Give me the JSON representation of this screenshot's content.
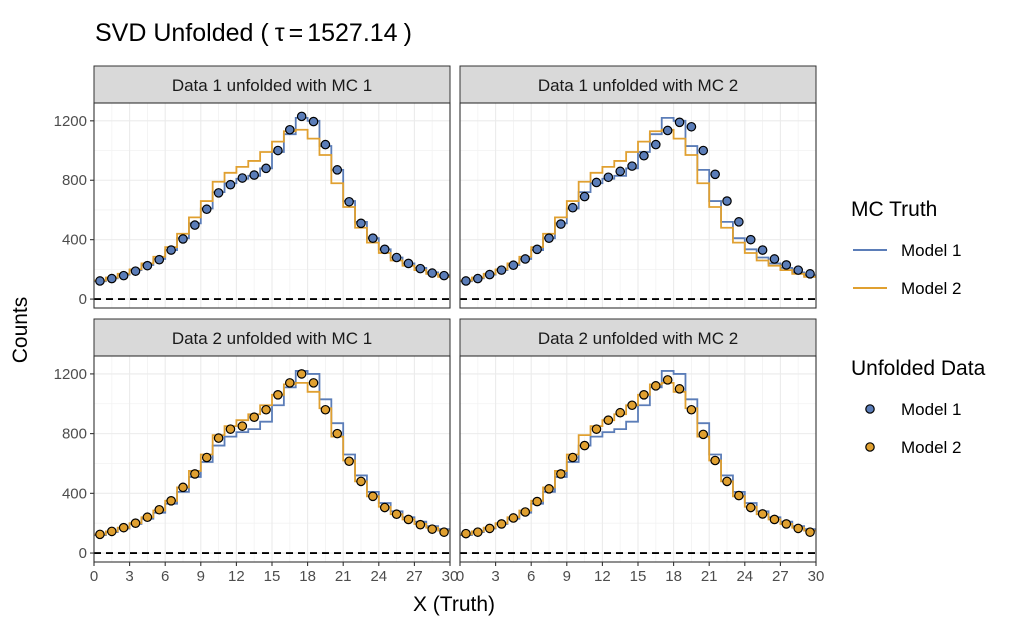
{
  "chart_data": {
    "type": "line",
    "title_prefix": "SVD Unfolded (",
    "title_symbol": "τ",
    "title_equals": "=",
    "title_value": "1527.14",
    "title_suffix": ")",
    "xlabel": "X (Truth)",
    "ylabel": "Counts",
    "xlim": [
      0,
      30
    ],
    "ylim": [
      -60,
      1320
    ],
    "xticks": [
      0,
      3,
      6,
      9,
      12,
      15,
      18,
      21,
      24,
      27,
      30
    ],
    "xtick_labels": [
      "0",
      "3",
      "6",
      "9",
      "12",
      "15",
      "18",
      "21",
      "24",
      "27",
      "30"
    ],
    "yticks": [
      0,
      400,
      800,
      1200
    ],
    "ytick_labels": [
      "0",
      "400",
      "800",
      "1200"
    ],
    "reference_line": 0,
    "grid": true,
    "colors": {
      "model1": "#5b7db8",
      "model2": "#e0a030"
    },
    "legend": {
      "placement": "right",
      "truth_title": "MC Truth",
      "truth_items": [
        "Model 1",
        "Model 2"
      ],
      "data_title": "Unfolded Data",
      "data_items": [
        "Model 1",
        "Model 2"
      ]
    },
    "bin_edges": [
      0,
      1,
      2,
      3,
      4,
      5,
      6,
      7,
      8,
      9,
      10,
      11,
      12,
      13,
      14,
      15,
      16,
      17,
      18,
      19,
      20,
      21,
      22,
      23,
      24,
      25,
      26,
      27,
      28,
      29,
      30
    ],
    "truth_model1": [
      120,
      140,
      165,
      195,
      230,
      270,
      330,
      410,
      510,
      610,
      720,
      780,
      810,
      830,
      880,
      990,
      1110,
      1220,
      1200,
      1030,
      870,
      660,
      520,
      410,
      335,
      280,
      240,
      210,
      180,
      160
    ],
    "truth_model2": [
      125,
      145,
      170,
      200,
      240,
      285,
      350,
      440,
      550,
      660,
      790,
      850,
      890,
      930,
      990,
      1060,
      1130,
      1140,
      1080,
      970,
      780,
      620,
      480,
      380,
      310,
      260,
      225,
      195,
      170,
      150
    ],
    "panels": [
      {
        "strip": "Data 1 unfolded with MC 1",
        "data_model": "model1",
        "points": [
          122,
          138,
          158,
          188,
          225,
          265,
          330,
          405,
          498,
          605,
          715,
          770,
          815,
          835,
          880,
          1000,
          1140,
          1230,
          1195,
          1040,
          870,
          655,
          510,
          410,
          335,
          280,
          240,
          205,
          175,
          158
        ]
      },
      {
        "strip": "Data 1 unfolded with MC 2",
        "data_model": "model1",
        "points": [
          122,
          138,
          165,
          195,
          228,
          270,
          335,
          410,
          505,
          615,
          690,
          785,
          820,
          860,
          895,
          965,
          1040,
          1135,
          1190,
          1160,
          1000,
          840,
          660,
          520,
          400,
          330,
          270,
          230,
          195,
          170
        ]
      },
      {
        "strip": "Data 2 unfolded with MC 1",
        "data_model": "model2",
        "points": [
          125,
          145,
          170,
          200,
          240,
          290,
          350,
          440,
          530,
          640,
          770,
          830,
          850,
          910,
          960,
          1060,
          1140,
          1200,
          1140,
          960,
          800,
          615,
          480,
          380,
          305,
          260,
          225,
          190,
          160,
          140
        ]
      },
      {
        "strip": "Data 2 unfolded with MC 2",
        "data_model": "model2",
        "points": [
          130,
          140,
          165,
          195,
          235,
          275,
          345,
          430,
          530,
          640,
          720,
          830,
          890,
          940,
          990,
          1060,
          1120,
          1160,
          1100,
          960,
          795,
          620,
          480,
          385,
          305,
          262,
          225,
          195,
          165,
          140
        ]
      }
    ]
  }
}
